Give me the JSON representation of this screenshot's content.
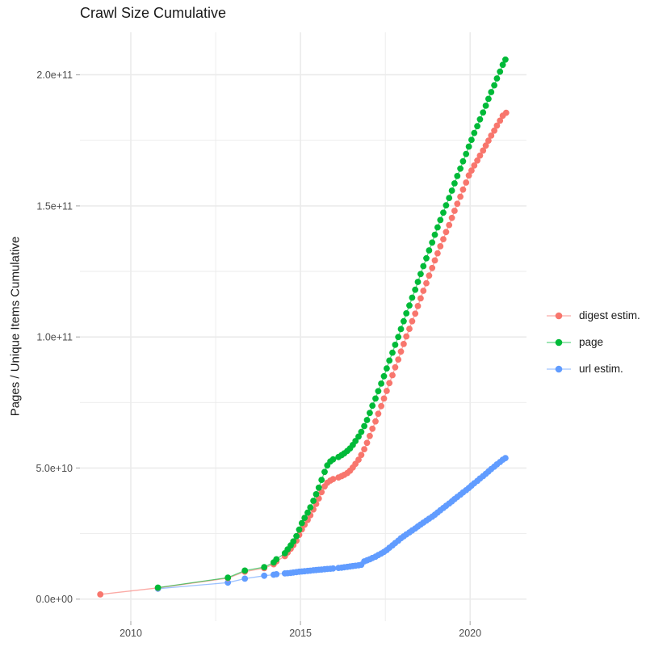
{
  "chart_data": {
    "type": "scatter",
    "title": "Crawl Size Cumulative",
    "xlabel": "",
    "ylabel": "Pages / Unique Items Cumulative",
    "legend_position": "right",
    "grid": true,
    "grid_color": "#EBEBEB",
    "tick_color": "#B3B3B3",
    "tick_label_color": "#4D4D4D",
    "x_domain": [
      2008.5,
      2021.66
    ],
    "y_domain_billion": [
      -8.4,
      216.2
    ],
    "x_ticks": [
      {
        "v": 2010,
        "label": "2010"
      },
      {
        "v": 2015,
        "label": "2015"
      },
      {
        "v": 2020,
        "label": "2020"
      }
    ],
    "x_minor_ticks": [
      2012.5,
      2017.5
    ],
    "y_ticks": [
      {
        "v": 0,
        "label": "0.0e+00"
      },
      {
        "v": 50,
        "label": "5.0e+10"
      },
      {
        "v": 100,
        "label": "1.0e+11"
      },
      {
        "v": 150,
        "label": "1.5e+11"
      },
      {
        "v": 200,
        "label": "2.0e+11"
      }
    ],
    "y_minor_ticks_billion": [
      25,
      75,
      125,
      175
    ],
    "series": [
      {
        "name": "digest estim.",
        "id": "digest-estim",
        "color": "#F8766D",
        "points_year_billion": [
          [
            2009.1,
            1.8
          ],
          [
            2010.8,
            4.3
          ],
          [
            2012.86,
            8.0
          ],
          [
            2013.36,
            10.5
          ],
          [
            2013.93,
            11.8
          ],
          [
            2014.21,
            13.3
          ],
          [
            2014.29,
            14.4
          ],
          [
            2014.54,
            16.4
          ],
          [
            2014.62,
            17.8
          ],
          [
            2014.71,
            19.2
          ],
          [
            2014.79,
            20.6
          ],
          [
            2014.88,
            22.3
          ],
          [
            2014.96,
            24.5
          ],
          [
            2015.04,
            26.6
          ],
          [
            2015.12,
            28.4
          ],
          [
            2015.21,
            30.2
          ],
          [
            2015.29,
            32.0
          ],
          [
            2015.38,
            34.2
          ],
          [
            2015.46,
            36.3
          ],
          [
            2015.54,
            38.4
          ],
          [
            2015.62,
            40.8
          ],
          [
            2015.71,
            43.0
          ],
          [
            2015.79,
            44.4
          ],
          [
            2015.88,
            45.2
          ],
          [
            2015.96,
            45.8
          ],
          [
            2016.12,
            46.4
          ],
          [
            2016.21,
            46.9
          ],
          [
            2016.29,
            47.4
          ],
          [
            2016.38,
            48.1
          ],
          [
            2016.46,
            49.0
          ],
          [
            2016.54,
            50.2
          ],
          [
            2016.62,
            51.6
          ],
          [
            2016.71,
            53.2
          ],
          [
            2016.79,
            55.0
          ],
          [
            2016.88,
            57.2
          ],
          [
            2016.96,
            59.6
          ],
          [
            2017.04,
            62.2
          ],
          [
            2017.12,
            65.0
          ],
          [
            2017.21,
            67.8
          ],
          [
            2017.29,
            70.7
          ],
          [
            2017.38,
            73.6
          ],
          [
            2017.46,
            76.5
          ],
          [
            2017.54,
            79.4
          ],
          [
            2017.62,
            82.4
          ],
          [
            2017.71,
            85.4
          ],
          [
            2017.79,
            88.4
          ],
          [
            2017.88,
            91.4
          ],
          [
            2017.96,
            94.4
          ],
          [
            2018.04,
            97.3
          ],
          [
            2018.12,
            100.2
          ],
          [
            2018.21,
            103.1
          ],
          [
            2018.29,
            106.0
          ],
          [
            2018.38,
            108.9
          ],
          [
            2018.46,
            111.8
          ],
          [
            2018.54,
            114.7
          ],
          [
            2018.62,
            117.6
          ],
          [
            2018.71,
            120.5
          ],
          [
            2018.79,
            123.4
          ],
          [
            2018.88,
            126.3
          ],
          [
            2018.96,
            129.2
          ],
          [
            2019.04,
            131.9
          ],
          [
            2019.12,
            134.6
          ],
          [
            2019.21,
            137.3
          ],
          [
            2019.29,
            140.0
          ],
          [
            2019.38,
            142.7
          ],
          [
            2019.46,
            145.4
          ],
          [
            2019.54,
            148.1
          ],
          [
            2019.62,
            150.8
          ],
          [
            2019.71,
            153.5
          ],
          [
            2019.79,
            156.2
          ],
          [
            2019.88,
            158.9
          ],
          [
            2019.96,
            161.6
          ],
          [
            2020.04,
            163.5
          ],
          [
            2020.12,
            165.4
          ],
          [
            2020.21,
            167.3
          ],
          [
            2020.29,
            169.2
          ],
          [
            2020.38,
            171.1
          ],
          [
            2020.46,
            173.0
          ],
          [
            2020.54,
            174.9
          ],
          [
            2020.62,
            176.8
          ],
          [
            2020.71,
            178.7
          ],
          [
            2020.79,
            180.6
          ],
          [
            2020.88,
            182.5
          ],
          [
            2020.96,
            184.4
          ],
          [
            2021.06,
            185.5
          ]
        ]
      },
      {
        "name": "page",
        "id": "page",
        "color": "#00BA38",
        "points_year_billion": [
          [
            2010.8,
            4.4
          ],
          [
            2012.86,
            8.2
          ],
          [
            2013.36,
            10.9
          ],
          [
            2013.93,
            12.2
          ],
          [
            2014.21,
            14.0
          ],
          [
            2014.29,
            15.2
          ],
          [
            2014.54,
            17.5
          ],
          [
            2014.62,
            19.0
          ],
          [
            2014.71,
            20.5
          ],
          [
            2014.79,
            22.0
          ],
          [
            2014.88,
            24.0
          ],
          [
            2014.96,
            26.5
          ],
          [
            2015.04,
            29.0
          ],
          [
            2015.12,
            31.0
          ],
          [
            2015.21,
            33.0
          ],
          [
            2015.29,
            35.0
          ],
          [
            2015.38,
            37.5
          ],
          [
            2015.46,
            40.0
          ],
          [
            2015.54,
            42.5
          ],
          [
            2015.62,
            45.5
          ],
          [
            2015.71,
            48.5
          ],
          [
            2015.79,
            51.0
          ],
          [
            2015.88,
            52.5
          ],
          [
            2015.96,
            53.3
          ],
          [
            2016.12,
            54.2
          ],
          [
            2016.21,
            54.9
          ],
          [
            2016.29,
            55.6
          ],
          [
            2016.38,
            56.5
          ],
          [
            2016.46,
            57.5
          ],
          [
            2016.54,
            58.8
          ],
          [
            2016.62,
            60.3
          ],
          [
            2016.71,
            62.0
          ],
          [
            2016.79,
            63.8
          ],
          [
            2016.88,
            66.0
          ],
          [
            2016.96,
            68.3
          ],
          [
            2017.04,
            71.0
          ],
          [
            2017.12,
            73.8
          ],
          [
            2017.21,
            76.5
          ],
          [
            2017.29,
            79.3
          ],
          [
            2017.38,
            82.2
          ],
          [
            2017.46,
            85.0
          ],
          [
            2017.54,
            88.0
          ],
          [
            2017.62,
            91.0
          ],
          [
            2017.71,
            94.0
          ],
          [
            2017.79,
            97.0
          ],
          [
            2017.88,
            100.0
          ],
          [
            2017.96,
            103.0
          ],
          [
            2018.04,
            106.0
          ],
          [
            2018.12,
            109.0
          ],
          [
            2018.21,
            112.0
          ],
          [
            2018.29,
            115.0
          ],
          [
            2018.38,
            118.0
          ],
          [
            2018.46,
            121.0
          ],
          [
            2018.54,
            124.0
          ],
          [
            2018.62,
            127.0
          ],
          [
            2018.71,
            130.0
          ],
          [
            2018.79,
            133.0
          ],
          [
            2018.88,
            136.0
          ],
          [
            2018.96,
            139.0
          ],
          [
            2019.04,
            141.8
          ],
          [
            2019.12,
            144.6
          ],
          [
            2019.21,
            147.4
          ],
          [
            2019.29,
            150.2
          ],
          [
            2019.38,
            153.0
          ],
          [
            2019.46,
            155.8
          ],
          [
            2019.54,
            158.6
          ],
          [
            2019.62,
            161.4
          ],
          [
            2019.71,
            164.2
          ],
          [
            2019.79,
            167.0
          ],
          [
            2019.88,
            169.8
          ],
          [
            2019.96,
            172.6
          ],
          [
            2020.04,
            175.2
          ],
          [
            2020.12,
            177.8
          ],
          [
            2020.21,
            180.4
          ],
          [
            2020.29,
            183.0
          ],
          [
            2020.38,
            185.6
          ],
          [
            2020.46,
            188.2
          ],
          [
            2020.54,
            190.8
          ],
          [
            2020.62,
            193.4
          ],
          [
            2020.71,
            196.0
          ],
          [
            2020.79,
            198.6
          ],
          [
            2020.88,
            201.2
          ],
          [
            2020.96,
            203.8
          ],
          [
            2021.04,
            205.8
          ]
        ]
      },
      {
        "name": "url estim.",
        "id": "url-estim",
        "color": "#619CFF",
        "points_year_billion": [
          [
            2010.8,
            4.0
          ],
          [
            2012.86,
            6.3
          ],
          [
            2013.36,
            7.8
          ],
          [
            2013.93,
            8.9
          ],
          [
            2014.21,
            9.3
          ],
          [
            2014.29,
            9.5
          ],
          [
            2014.54,
            9.8
          ],
          [
            2014.62,
            9.9
          ],
          [
            2014.71,
            10.0
          ],
          [
            2014.79,
            10.15
          ],
          [
            2014.88,
            10.3
          ],
          [
            2014.96,
            10.45
          ],
          [
            2015.04,
            10.55
          ],
          [
            2015.12,
            10.65
          ],
          [
            2015.21,
            10.75
          ],
          [
            2015.29,
            10.85
          ],
          [
            2015.38,
            11.0
          ],
          [
            2015.46,
            11.1
          ],
          [
            2015.54,
            11.2
          ],
          [
            2015.62,
            11.3
          ],
          [
            2015.71,
            11.4
          ],
          [
            2015.79,
            11.5
          ],
          [
            2015.88,
            11.6
          ],
          [
            2015.96,
            11.7
          ],
          [
            2016.12,
            11.9
          ],
          [
            2016.21,
            12.0
          ],
          [
            2016.29,
            12.15
          ],
          [
            2016.38,
            12.3
          ],
          [
            2016.46,
            12.45
          ],
          [
            2016.54,
            12.6
          ],
          [
            2016.62,
            12.75
          ],
          [
            2016.71,
            12.9
          ],
          [
            2016.79,
            13.1
          ],
          [
            2016.88,
            14.4
          ],
          [
            2016.96,
            14.8
          ],
          [
            2017.04,
            15.2
          ],
          [
            2017.12,
            15.7
          ],
          [
            2017.21,
            16.2
          ],
          [
            2017.29,
            16.8
          ],
          [
            2017.38,
            17.4
          ],
          [
            2017.46,
            18.0
          ],
          [
            2017.54,
            18.7
          ],
          [
            2017.62,
            19.6
          ],
          [
            2017.71,
            20.5
          ],
          [
            2017.79,
            21.4
          ],
          [
            2017.88,
            22.3
          ],
          [
            2017.96,
            23.2
          ],
          [
            2018.04,
            23.95
          ],
          [
            2018.12,
            24.7
          ],
          [
            2018.21,
            25.45
          ],
          [
            2018.29,
            26.2
          ],
          [
            2018.38,
            26.95
          ],
          [
            2018.46,
            27.7
          ],
          [
            2018.54,
            28.45
          ],
          [
            2018.62,
            29.2
          ],
          [
            2018.71,
            29.95
          ],
          [
            2018.79,
            30.7
          ],
          [
            2018.88,
            31.45
          ],
          [
            2018.96,
            32.2
          ],
          [
            2019.04,
            33.05
          ],
          [
            2019.12,
            33.9
          ],
          [
            2019.21,
            34.75
          ],
          [
            2019.29,
            35.6
          ],
          [
            2019.38,
            36.45
          ],
          [
            2019.46,
            37.3
          ],
          [
            2019.54,
            38.15
          ],
          [
            2019.62,
            39.0
          ],
          [
            2019.71,
            39.85
          ],
          [
            2019.79,
            40.7
          ],
          [
            2019.88,
            41.55
          ],
          [
            2019.96,
            42.4
          ],
          [
            2020.04,
            43.3
          ],
          [
            2020.12,
            44.2
          ],
          [
            2020.21,
            45.1
          ],
          [
            2020.29,
            46.0
          ],
          [
            2020.38,
            46.9
          ],
          [
            2020.46,
            47.8
          ],
          [
            2020.54,
            48.7
          ],
          [
            2020.62,
            49.6
          ],
          [
            2020.71,
            50.5
          ],
          [
            2020.79,
            51.4
          ],
          [
            2020.88,
            52.3
          ],
          [
            2020.96,
            53.2
          ],
          [
            2021.04,
            53.8
          ]
        ]
      }
    ],
    "draw_order": [
      2,
      0,
      1
    ]
  }
}
